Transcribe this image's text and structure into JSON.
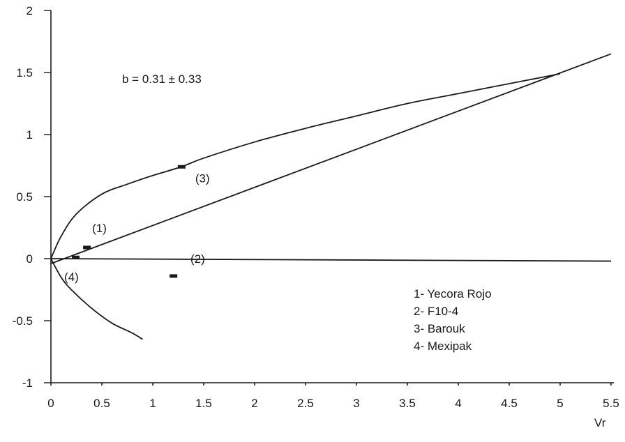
{
  "chart_data": {
    "type": "scatter",
    "xlabel": "Vr",
    "ylabel": "",
    "xlim": [
      0,
      5.5
    ],
    "ylim": [
      -1,
      2
    ],
    "xticks": [
      "0",
      "0.5",
      "1",
      "1.5",
      "2",
      "2.5",
      "3",
      "3.5",
      "4",
      "4.5",
      "5",
      "5.5"
    ],
    "yticks": [
      "-1",
      "-0.5",
      "0",
      "0.5",
      "1",
      "1.5",
      "2"
    ],
    "annotation": "b = 0.31 ± 0.33",
    "points": [
      {
        "label": "(1)",
        "x": 0.35,
        "y": 0.09
      },
      {
        "label": "(2)",
        "x": 1.2,
        "y": -0.14
      },
      {
        "label": "(3)",
        "x": 1.28,
        "y": 0.74
      },
      {
        "label": "(4)",
        "x": 0.24,
        "y": 0.01
      }
    ],
    "curves": [
      {
        "id": "upper-band",
        "points": [
          [
            0,
            0
          ],
          [
            0.1,
            0.18
          ],
          [
            0.25,
            0.36
          ],
          [
            0.5,
            0.52
          ],
          [
            0.75,
            0.6
          ],
          [
            1,
            0.67
          ],
          [
            1.28,
            0.74
          ],
          [
            1.5,
            0.81
          ],
          [
            2,
            0.94
          ],
          [
            2.5,
            1.05
          ],
          [
            3,
            1.15
          ],
          [
            3.5,
            1.25
          ],
          [
            4,
            1.33
          ],
          [
            4.5,
            1.41
          ],
          [
            5,
            1.49
          ]
        ]
      },
      {
        "id": "fitted-line",
        "points": [
          [
            0,
            -0.04
          ],
          [
            5.5,
            1.65
          ]
        ]
      },
      {
        "id": "lower-band",
        "points": [
          [
            0,
            0
          ],
          [
            0.1,
            -0.15
          ],
          [
            0.2,
            -0.25
          ],
          [
            0.4,
            -0.4
          ],
          [
            0.6,
            -0.52
          ],
          [
            0.8,
            -0.6
          ],
          [
            0.9,
            -0.65
          ]
        ]
      },
      {
        "id": "zero-line",
        "points": [
          [
            0,
            0
          ],
          [
            5.5,
            -0.02
          ]
        ]
      }
    ],
    "legend": {
      "position": "bottom-right",
      "items": [
        "1- Yecora Rojo",
        "2- F10-4",
        "3- Barouk",
        "4- Mexipak"
      ]
    },
    "grid": false
  }
}
